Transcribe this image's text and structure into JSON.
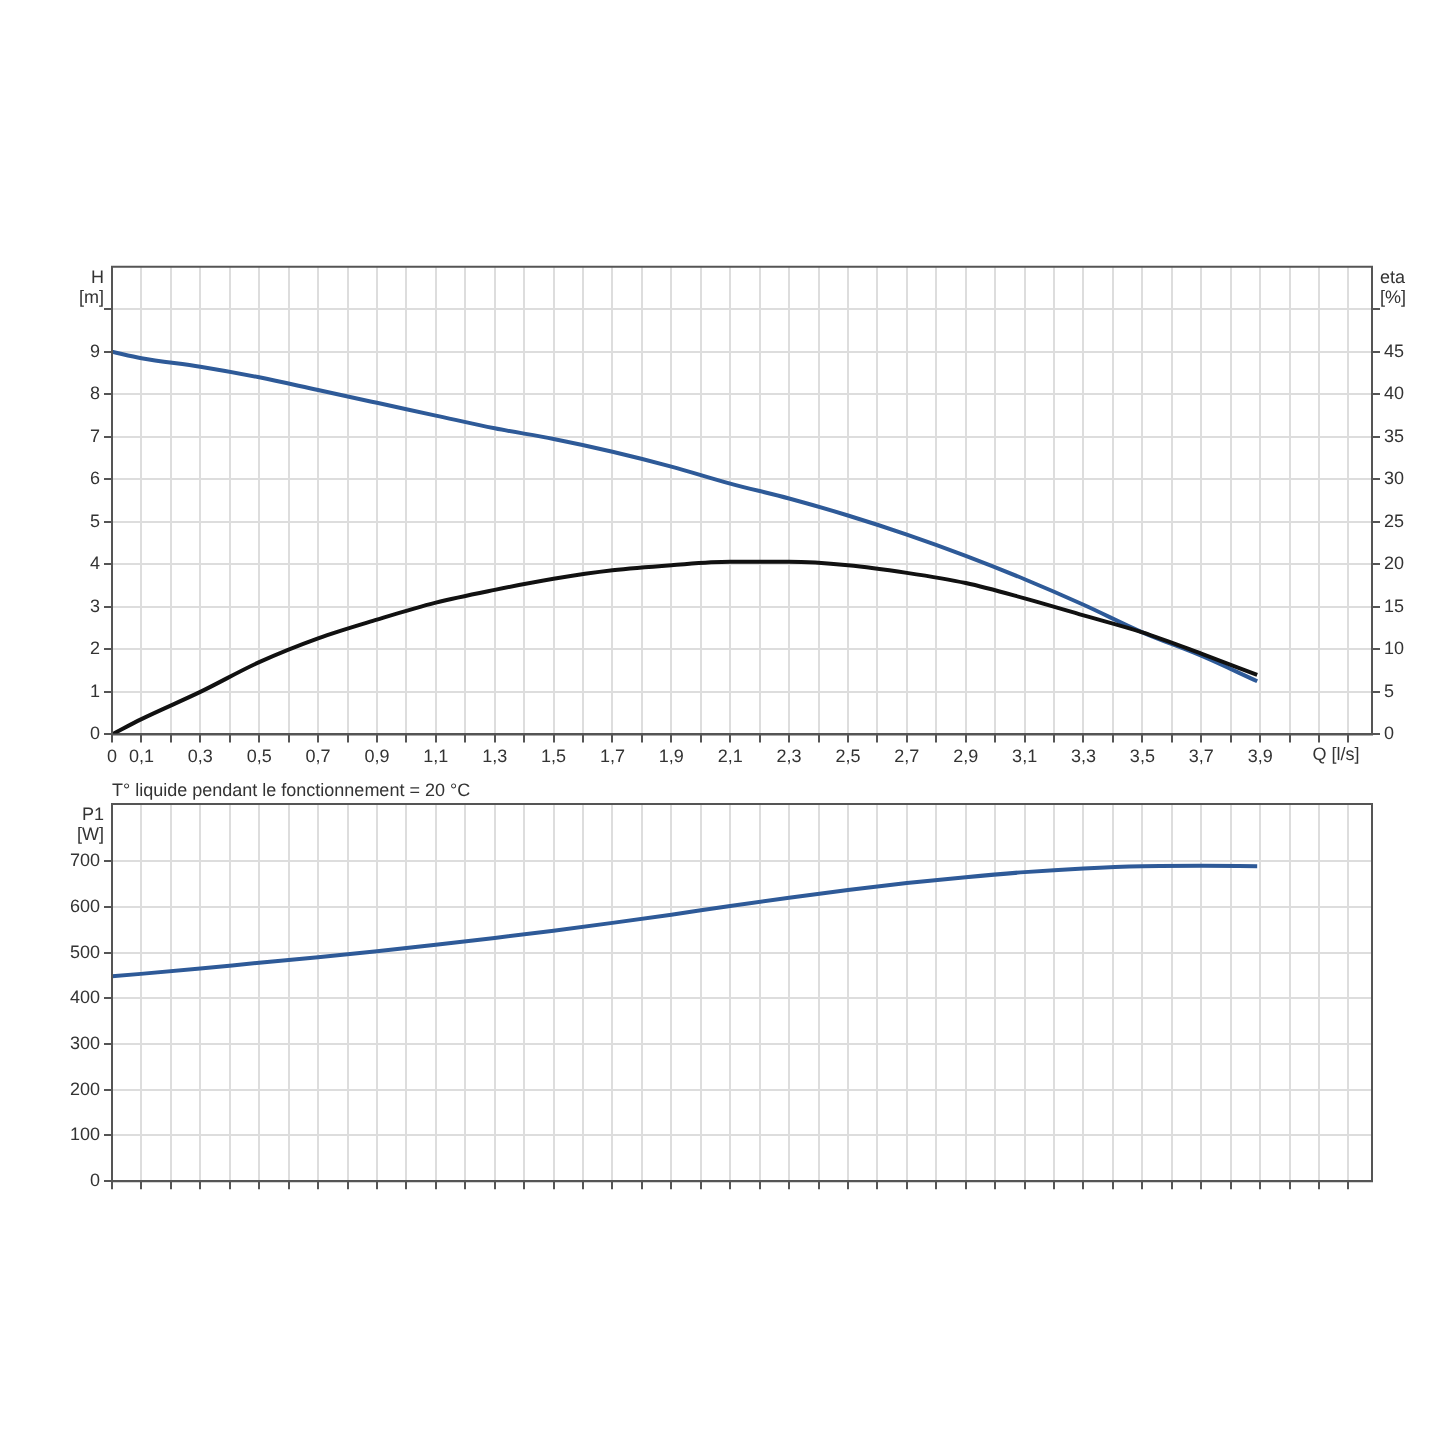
{
  "chart_data": [
    {
      "type": "line",
      "ylabel": "H [m]",
      "y2label": "eta [%]",
      "xlabel": "Q [l/s]",
      "x": [
        0,
        0.1,
        0.3,
        0.5,
        0.7,
        0.9,
        1.1,
        1.3,
        1.5,
        1.7,
        1.9,
        2.1,
        2.3,
        2.5,
        2.7,
        2.9,
        3.1,
        3.3,
        3.5,
        3.7,
        3.89
      ],
      "series": [
        {
          "color": "#111111",
          "axis": "y2",
          "values": [
            0,
            1.8,
            5,
            8.5,
            11.3,
            13.5,
            15.5,
            17,
            18.3,
            19.3,
            19.9,
            20.3,
            20.3,
            19.9,
            19,
            17.8,
            16,
            14,
            12,
            9.5,
            7
          ]
        },
        {
          "color": "#2e5a98",
          "values": [
            9.0,
            8.85,
            8.65,
            8.4,
            8.1,
            7.8,
            7.5,
            7.2,
            6.95,
            6.65,
            6.3,
            5.9,
            5.55,
            5.15,
            4.7,
            4.2,
            3.65,
            3.05,
            2.4,
            1.85,
            1.25
          ]
        }
      ],
      "xlim": [
        0,
        4.28
      ],
      "xticks": [
        0,
        {
          "value": 0.1,
          "label": "0,1"
        },
        {
          "value": 0.2,
          "label": null
        },
        {
          "value": 0.3,
          "label": "0,3"
        },
        {
          "value": 0.4,
          "label": null
        },
        {
          "value": 0.5,
          "label": "0,5"
        },
        {
          "value": 0.6,
          "label": null
        },
        {
          "value": 0.7,
          "label": "0,7"
        },
        {
          "value": 0.8,
          "label": null
        },
        {
          "value": 0.9,
          "label": "0,9"
        },
        {
          "value": 1.0,
          "label": null
        },
        {
          "value": 1.1,
          "label": "1,1"
        },
        {
          "value": 1.2,
          "label": null
        },
        {
          "value": 1.3,
          "label": "1,3"
        },
        {
          "value": 1.4,
          "label": null
        },
        {
          "value": 1.5,
          "label": "1,5"
        },
        {
          "value": 1.6,
          "label": null
        },
        {
          "value": 1.7,
          "label": "1,7"
        },
        {
          "value": 1.8,
          "label": null
        },
        {
          "value": 1.9,
          "label": "1,9"
        },
        {
          "value": 2.0,
          "label": null
        },
        {
          "value": 2.1,
          "label": "2,1"
        },
        {
          "value": 2.2,
          "label": null
        },
        {
          "value": 2.3,
          "label": "2,3"
        },
        {
          "value": 2.4,
          "label": null
        },
        {
          "value": 2.5,
          "label": "2,5"
        },
        {
          "value": 2.6,
          "label": null
        },
        {
          "value": 2.7,
          "label": "2,7"
        },
        {
          "value": 2.8,
          "label": null
        },
        {
          "value": 2.9,
          "label": "2,9"
        },
        {
          "value": 3.0,
          "label": null
        },
        {
          "value": 3.1,
          "label": "3,1"
        },
        {
          "value": 3.2,
          "label": null
        },
        {
          "value": 3.3,
          "label": "3,3"
        },
        {
          "value": 3.4,
          "label": null
        },
        {
          "value": 3.5,
          "label": "3,5"
        },
        {
          "value": 3.6,
          "label": null
        },
        {
          "value": 3.7,
          "label": "3,7"
        },
        {
          "value": 3.8,
          "label": null
        },
        {
          "value": 3.9,
          "label": "3,9"
        },
        {
          "value": 4.0,
          "label": null
        },
        {
          "value": 4.1,
          "label": null
        },
        {
          "value": 4.2,
          "label": null
        }
      ],
      "ylim": [
        0,
        11
      ],
      "yticks": [
        0,
        1,
        2,
        3,
        4,
        5,
        6,
        7,
        8,
        9,
        {
          "value": 10,
          "label": null
        }
      ],
      "y2lim": [
        0,
        55
      ],
      "y2ticks": [
        0,
        5,
        10,
        15,
        20,
        25,
        30,
        35,
        40,
        45,
        {
          "value": 50,
          "label": null
        }
      ],
      "grid": true,
      "legend": false
    },
    {
      "type": "line",
      "ylabel": "P1 [W]",
      "annotations": [
        "T° liquide pendant le fonctionnement = 20 °C"
      ],
      "x": [
        0,
        0.3,
        0.5,
        0.7,
        0.9,
        1.1,
        1.3,
        1.5,
        1.7,
        1.9,
        2.1,
        2.3,
        2.5,
        2.7,
        2.9,
        3.1,
        3.3,
        3.5,
        3.7,
        3.89
      ],
      "series": [
        {
          "color": "#2e5a98",
          "values": [
            448,
            465,
            478,
            490,
            503,
            517,
            532,
            548,
            565,
            583,
            602,
            620,
            637,
            652,
            665,
            676,
            684,
            689,
            690,
            689
          ]
        }
      ],
      "xlim": [
        0,
        4.28
      ],
      "xticks": [
        {
          "value": 0,
          "label": null
        },
        {
          "value": 0.1,
          "label": null
        },
        {
          "value": 0.2,
          "label": null
        },
        {
          "value": 0.3,
          "label": null
        },
        {
          "value": 0.4,
          "label": null
        },
        {
          "value": 0.5,
          "label": null
        },
        {
          "value": 0.6,
          "label": null
        },
        {
          "value": 0.7,
          "label": null
        },
        {
          "value": 0.8,
          "label": null
        },
        {
          "value": 0.9,
          "label": null
        },
        {
          "value": 1.0,
          "label": null
        },
        {
          "value": 1.1,
          "label": null
        },
        {
          "value": 1.2,
          "label": null
        },
        {
          "value": 1.3,
          "label": null
        },
        {
          "value": 1.4,
          "label": null
        },
        {
          "value": 1.5,
          "label": null
        },
        {
          "value": 1.6,
          "label": null
        },
        {
          "value": 1.7,
          "label": null
        },
        {
          "value": 1.8,
          "label": null
        },
        {
          "value": 1.9,
          "label": null
        },
        {
          "value": 2.0,
          "label": null
        },
        {
          "value": 2.1,
          "label": null
        },
        {
          "value": 2.2,
          "label": null
        },
        {
          "value": 2.3,
          "label": null
        },
        {
          "value": 2.4,
          "label": null
        },
        {
          "value": 2.5,
          "label": null
        },
        {
          "value": 2.6,
          "label": null
        },
        {
          "value": 2.7,
          "label": null
        },
        {
          "value": 2.8,
          "label": null
        },
        {
          "value": 2.9,
          "label": null
        },
        {
          "value": 3.0,
          "label": null
        },
        {
          "value": 3.1,
          "label": null
        },
        {
          "value": 3.2,
          "label": null
        },
        {
          "value": 3.3,
          "label": null
        },
        {
          "value": 3.4,
          "label": null
        },
        {
          "value": 3.5,
          "label": null
        },
        {
          "value": 3.6,
          "label": null
        },
        {
          "value": 3.7,
          "label": null
        },
        {
          "value": 3.8,
          "label": null
        },
        {
          "value": 3.9,
          "label": null
        },
        {
          "value": 4.0,
          "label": null
        },
        {
          "value": 4.1,
          "label": null
        },
        {
          "value": 4.2,
          "label": null
        }
      ],
      "ylim": [
        0,
        825
      ],
      "yticks": [
        0,
        100,
        200,
        300,
        400,
        500,
        600,
        700
      ],
      "grid": true,
      "legend": false,
      "tick_labels": "y"
    }
  ]
}
